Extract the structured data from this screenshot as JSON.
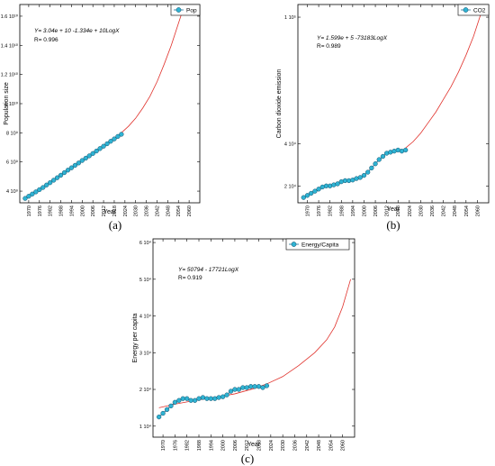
{
  "chart_data": [
    {
      "type": "line",
      "caption": "(a)",
      "xlabel": "Year",
      "ylabel": "Population size",
      "legend": "Pop",
      "legend_position": "top-right",
      "equation": "Y= 3.04e + 10 -1.334e + 10LogX",
      "r_value": "R= 0.996",
      "ytick_labels": [
        "4 10⁹",
        "6 10⁹",
        "8 10⁹",
        "1 10¹⁰",
        "1.2 10¹⁰",
        "1.4 10¹⁰",
        "1.6 10¹⁰"
      ],
      "yticks": [
        4000000000.0,
        6000000000.0,
        8000000000.0,
        10000000000.0,
        12000000000.0,
        14000000000.0,
        16000000000.0
      ],
      "ylim": [
        3200000000.0,
        16800000000.0
      ],
      "xticks": [
        1970,
        1976,
        1982,
        1988,
        1994,
        2000,
        2006,
        2012,
        2018,
        2024,
        2030,
        2036,
        2042,
        2048,
        2054,
        2060
      ],
      "xlim": [
        1965,
        2066
      ],
      "series": [
        {
          "name": "Pop",
          "kind": "observed",
          "color": "#1f6f96",
          "x": [
            1968,
            1970,
            1972,
            1974,
            1976,
            1978,
            1980,
            1982,
            1984,
            1986,
            1988,
            1990,
            1992,
            1994,
            1996,
            1998,
            2000,
            2002,
            2004,
            2006,
            2008,
            2010,
            2012,
            2014,
            2016,
            2018,
            2020,
            2022
          ],
          "y": [
            3500000000.0,
            3650000000.0,
            3800000000.0,
            3950000000.0,
            4100000000.0,
            4250000000.0,
            4420000000.0,
            4580000000.0,
            4750000000.0,
            4920000000.0,
            5090000000.0,
            5270000000.0,
            5440000000.0,
            5600000000.0,
            5770000000.0,
            5930000000.0,
            6100000000.0,
            6260000000.0,
            6420000000.0,
            6580000000.0,
            6750000000.0,
            6920000000.0,
            7080000000.0,
            7250000000.0,
            7420000000.0,
            7580000000.0,
            7750000000.0,
            7900000000.0
          ]
        },
        {
          "name": "",
          "kind": "forecast",
          "color": "#e0302a",
          "x": [
            2022,
            2026,
            2030,
            2034,
            2038,
            2042,
            2046,
            2050,
            2054,
            2058
          ],
          "y": [
            8000000000.0,
            8450000000.0,
            9000000000.0,
            9700000000.0,
            10500000000.0,
            11500000000.0,
            12700000000.0,
            14000000000.0,
            15500000000.0,
            17000000000.0
          ]
        }
      ]
    },
    {
      "type": "line",
      "caption": "(b)",
      "xlabel": "Year",
      "ylabel": "Carbon dioxide emission",
      "legend": "CO2",
      "legend_position": "top-right",
      "equation": "Y= 1.599e + 5 -73183LogX",
      "r_value": "R= 0.989",
      "ytick_labels": [
        "2 10⁴",
        "4 10⁴",
        "1 10⁵"
      ],
      "yticks": [
        20000,
        40000,
        100000
      ],
      "ylim": [
        12000,
        106000
      ],
      "xticks": [
        1970,
        1976,
        1982,
        1988,
        1994,
        2000,
        2006,
        2012,
        2018,
        2024,
        2030,
        2036,
        2042,
        2048,
        2054,
        2060
      ],
      "xlim": [
        1965,
        2066
      ],
      "series": [
        {
          "name": "CO2",
          "kind": "observed",
          "color": "#1f6f96",
          "x": [
            1968,
            1970,
            1972,
            1974,
            1976,
            1978,
            1980,
            1982,
            1984,
            1986,
            1988,
            1990,
            1992,
            1994,
            1996,
            1998,
            2000,
            2002,
            2004,
            2006,
            2008,
            2010,
            2012,
            2014,
            2016,
            2018,
            2020,
            2022
          ],
          "y": [
            14500,
            15500,
            16500,
            17500,
            18500,
            19500,
            20000,
            20000,
            20500,
            21000,
            22000,
            22500,
            22500,
            22800,
            23500,
            24000,
            25000,
            26500,
            28500,
            30500,
            32500,
            34000,
            35500,
            36000,
            36500,
            37000,
            36500,
            37000
          ]
        },
        {
          "name": "",
          "kind": "forecast",
          "color": "#e0302a",
          "x": [
            2022,
            2026,
            2030,
            2034,
            2038,
            2042,
            2046,
            2050,
            2054,
            2058,
            2062
          ],
          "y": [
            38000,
            41000,
            45000,
            50000,
            55000,
            61000,
            67000,
            74000,
            82000,
            91000,
            102000
          ]
        }
      ]
    },
    {
      "type": "line",
      "caption": "(c)",
      "xlabel": "Year",
      "ylabel": "Energy per capita",
      "legend": "Energy/Capita",
      "legend_position": "top-left",
      "equation": "Y= 50794 - 17721LogX",
      "r_value": "R= 0.919",
      "ytick_labels": [
        "1 10⁴",
        "2 10⁴",
        "3 10⁴",
        "4 10⁴",
        "5 10⁴",
        "6 10⁴"
      ],
      "yticks": [
        10000,
        20000,
        30000,
        40000,
        50000,
        60000
      ],
      "ylim": [
        7000,
        61000
      ],
      "xticks": [
        1970,
        1976,
        1982,
        1988,
        1994,
        2000,
        2006,
        2012,
        2018,
        2024,
        2030,
        2036,
        2042,
        2048,
        2054,
        2060
      ],
      "xlim": [
        1965,
        2066
      ],
      "series": [
        {
          "name": "Energy/Capita",
          "kind": "observed",
          "color": "#1f6f96",
          "x": [
            1968,
            1970,
            1972,
            1974,
            1976,
            1978,
            1980,
            1982,
            1984,
            1986,
            1988,
            1990,
            1992,
            1994,
            1996,
            1998,
            2000,
            2002,
            2004,
            2006,
            2008,
            2010,
            2012,
            2014,
            2016,
            2018,
            2020,
            2022
          ],
          "y": [
            12500,
            13500,
            14500,
            15500,
            16500,
            17000,
            17500,
            17500,
            17000,
            17000,
            17500,
            17800,
            17500,
            17500,
            17500,
            17800,
            18000,
            18500,
            19500,
            20000,
            20000,
            20500,
            20500,
            20800,
            20800,
            20800,
            20500,
            21000
          ]
        },
        {
          "name": "",
          "kind": "forecast",
          "color": "#e0302a",
          "x": [
            1968,
            1976,
            1986,
            1996,
            2006,
            2016,
            2022,
            2030,
            2038,
            2046,
            2052,
            2056,
            2060,
            2064
          ],
          "y": [
            15000,
            16000,
            17000,
            17800,
            18800,
            20300,
            21500,
            23500,
            26500,
            30000,
            33500,
            37000,
            42500,
            50000
          ]
        }
      ]
    }
  ]
}
